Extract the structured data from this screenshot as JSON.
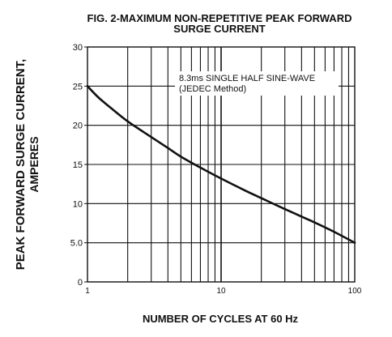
{
  "chart_data": {
    "type": "line",
    "title_lines": [
      "FIG. 2-MAXIMUM NON-REPETITIVE PEAK FORWARD",
      "SURGE CURRENT"
    ],
    "xlabel": "NUMBER OF CYCLES AT 60 Hz",
    "ylabel_lines": [
      "PEAK  FORWARD SURGE CURRENT,",
      "AMPERES"
    ],
    "x_scale": "log",
    "xlim": [
      1,
      100
    ],
    "ylim": [
      0,
      30
    ],
    "x_ticks": [
      {
        "value": 1,
        "label": "1"
      },
      {
        "value": 10,
        "label": "10"
      },
      {
        "value": 100,
        "label": "100"
      }
    ],
    "y_ticks": [
      {
        "value": 0,
        "label": "0"
      },
      {
        "value": 5,
        "label": "5.0"
      },
      {
        "value": 10,
        "label": "10"
      },
      {
        "value": 15,
        "label": "15"
      },
      {
        "value": 20,
        "label": "20"
      },
      {
        "value": 25,
        "label": "25"
      },
      {
        "value": 30,
        "label": "30"
      }
    ],
    "grid": true,
    "annotation_lines": [
      "8.3ms SINGLE HALF SINE-WAVE",
      "(JEDEC Method)"
    ],
    "series": [
      {
        "x": [
          1,
          1.2,
          1.5,
          2,
          3,
          4,
          5,
          7,
          10,
          15,
          20,
          30,
          50,
          70,
          100
        ],
        "y": [
          25,
          23.6,
          22.2,
          20.5,
          18.5,
          17.1,
          16.0,
          14.6,
          13.2,
          11.7,
          10.7,
          9.3,
          7.6,
          6.4,
          5.0
        ]
      }
    ]
  }
}
